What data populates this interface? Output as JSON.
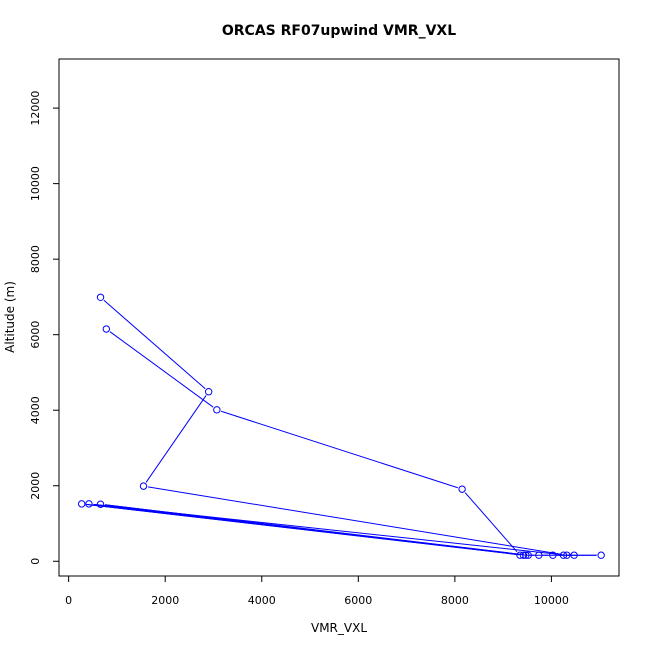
{
  "chart_data": {
    "type": "line",
    "title": "ORCAS RF07upwind VMR_VXL",
    "xlabel": "VMR_VXL",
    "ylabel": "Altitude (m)",
    "xlim": [
      -200,
      11400
    ],
    "ylim": [
      -390,
      13300
    ],
    "xticks": [
      0,
      2000,
      4000,
      6000,
      8000,
      10000
    ],
    "yticks": [
      0,
      2000,
      4000,
      6000,
      8000,
      10000,
      12000
    ],
    "series": [
      {
        "color": "#0000ff",
        "marker": "open-circle",
        "points": [
          [
            660,
            6990
          ],
          [
            2900,
            4490
          ],
          [
            1550,
            1990
          ],
          [
            10320,
            160
          ],
          [
            420,
            1520
          ],
          [
            9520,
            160
          ],
          [
            660,
            1510
          ],
          [
            9420,
            160
          ],
          [
            270,
            1520
          ],
          [
            9470,
            160
          ],
          [
            10470,
            160
          ],
          [
            10250,
            160
          ],
          [
            11030,
            160
          ],
          [
            10030,
            160
          ],
          [
            9740,
            160
          ],
          [
            9350,
            160
          ],
          [
            8150,
            1910
          ],
          [
            3070,
            4010
          ],
          [
            780,
            6150
          ]
        ]
      }
    ]
  }
}
